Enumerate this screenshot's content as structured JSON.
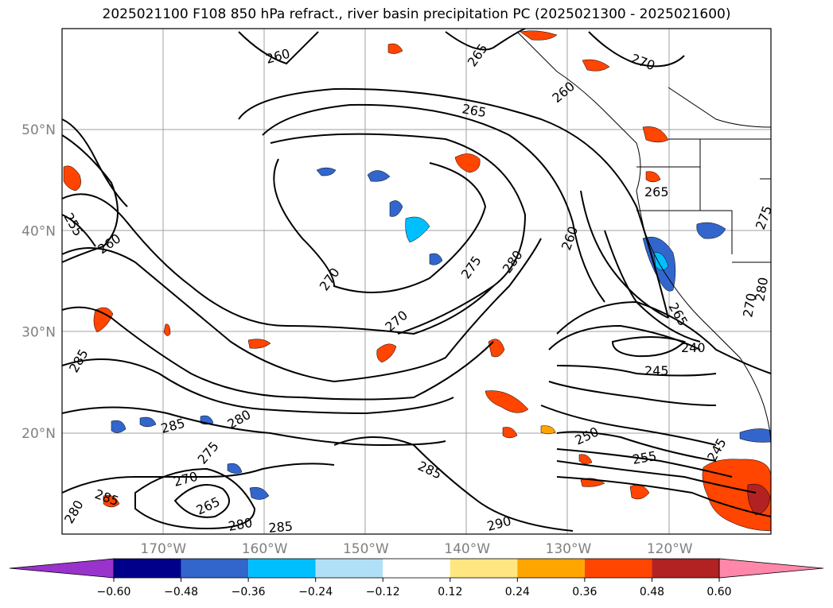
{
  "title": "2025021100 F108 850 hPa refract., river basin precipitation PC (2025021300 - 2025021600)",
  "map": {
    "lat_labels": [
      {
        "text": "50°N",
        "lat": 50
      },
      {
        "text": "40°N",
        "lat": 40
      },
      {
        "text": "30°N",
        "lat": 30
      },
      {
        "text": "20°N",
        "lat": 20
      }
    ],
    "lon_labels": [
      {
        "text": "170°W",
        "lon": -170
      },
      {
        "text": "160°W",
        "lon": -160
      },
      {
        "text": "150°W",
        "lon": -150
      },
      {
        "text": "140°W",
        "lon": -140
      },
      {
        "text": "130°W",
        "lon": -130
      },
      {
        "text": "120°W",
        "lon": -120
      }
    ],
    "lat_range": [
      10,
      60
    ],
    "lon_range": [
      -180,
      -110
    ],
    "grid": true,
    "contour_labels": [
      "260",
      "265",
      "270",
      "265",
      "260",
      "265",
      "270",
      "255",
      "260",
      "270",
      "275",
      "280",
      "260",
      "270",
      "265",
      "240",
      "245",
      "285",
      "285",
      "280",
      "275",
      "270",
      "265",
      "280",
      "285",
      "280",
      "285",
      "285",
      "290",
      "250",
      "255",
      "245",
      "275",
      "280"
    ],
    "colors": {
      "contour": "#000000",
      "grid": "#a0a0a0",
      "land_line": "#000000"
    }
  },
  "colorbar": {
    "ticks": [
      "−0.60",
      "−0.48",
      "−0.36",
      "−0.24",
      "−0.12",
      "0.12",
      "0.24",
      "0.36",
      "0.48",
      "0.60"
    ],
    "colors": [
      "#9933cc",
      "#00008b",
      "#3366cc",
      "#00bfff",
      "#b0e0f8",
      "#ffffff",
      "#ffe680",
      "#ffa500",
      "#ff4500",
      "#b22222",
      "#ff88aa"
    ],
    "extend": "both"
  }
}
